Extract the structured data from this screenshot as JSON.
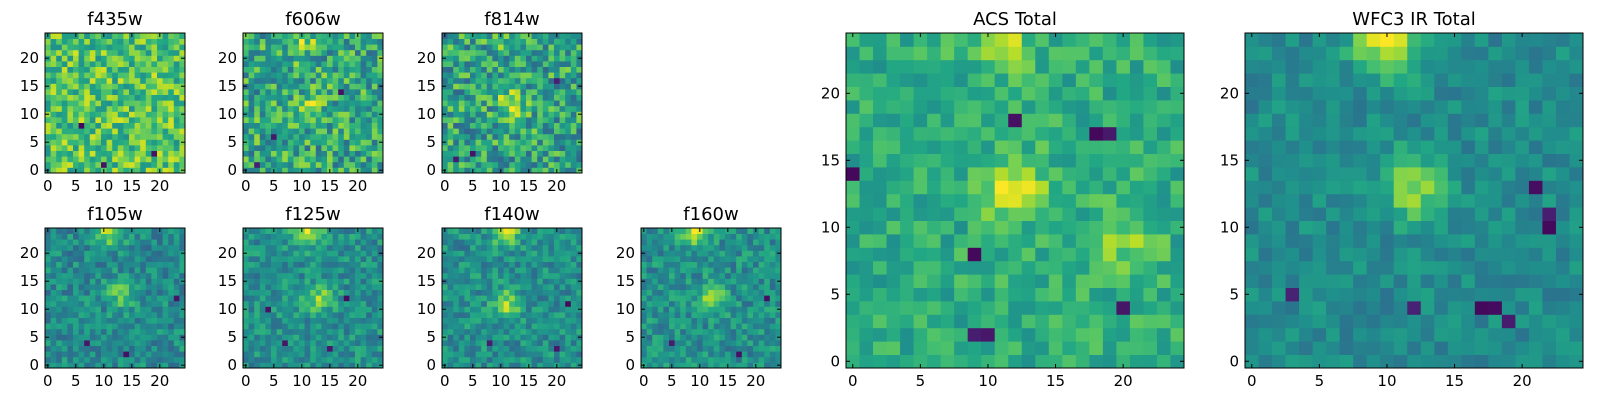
{
  "figure": {
    "description": "Grid of 2D pixel maps, 25x25 pixels each, viridis colormap, origin lower-left",
    "colormap": "viridis"
  },
  "chart_data": [
    {
      "type": "heatmap",
      "title": "f435w",
      "grid": [
        25,
        25
      ],
      "xticks": [
        0,
        5,
        10,
        15,
        20
      ],
      "yticks": [
        0,
        5,
        10,
        15,
        20
      ],
      "bright_spots": [],
      "dark_spots": [
        [
          10,
          1
        ],
        [
          19,
          3
        ],
        [
          6,
          8
        ]
      ],
      "mean_level": 0.72,
      "noise": 0.22
    },
    {
      "type": "heatmap",
      "title": "f606w",
      "grid": [
        25,
        25
      ],
      "xticks": [
        0,
        5,
        10,
        15,
        20
      ],
      "yticks": [
        0,
        5,
        10,
        15,
        20
      ],
      "bright_spots": [
        [
          10,
          23,
          0.25
        ],
        [
          12,
          12,
          0.2
        ]
      ],
      "dark_spots": [
        [
          2,
          1
        ],
        [
          5,
          6
        ],
        [
          17,
          14
        ]
      ],
      "mean_level": 0.6,
      "noise": 0.25
    },
    {
      "type": "heatmap",
      "title": "f814w",
      "grid": [
        25,
        25
      ],
      "xticks": [
        0,
        5,
        10,
        15,
        20
      ],
      "yticks": [
        0,
        5,
        10,
        15,
        20
      ],
      "bright_spots": [
        [
          12,
          12,
          0.35
        ],
        [
          11,
          24,
          0.2
        ]
      ],
      "dark_spots": [
        [
          2,
          2
        ],
        [
          5,
          3
        ],
        [
          20,
          16
        ]
      ],
      "mean_level": 0.58,
      "noise": 0.25
    },
    {
      "type": "heatmap",
      "title": "f105w",
      "grid": [
        25,
        25
      ],
      "xticks": [
        0,
        5,
        10,
        15,
        20
      ],
      "yticks": [
        0,
        5,
        10,
        15,
        20
      ],
      "bright_spots": [
        [
          11,
          24,
          0.45
        ],
        [
          13,
          13,
          0.3
        ]
      ],
      "dark_spots": [
        [
          23,
          12
        ],
        [
          7,
          4
        ],
        [
          14,
          2
        ]
      ],
      "mean_level": 0.48,
      "noise": 0.15
    },
    {
      "type": "heatmap",
      "title": "f125w",
      "grid": [
        25,
        25
      ],
      "xticks": [
        0,
        5,
        10,
        15,
        20
      ],
      "yticks": [
        0,
        5,
        10,
        15,
        20
      ],
      "bright_spots": [
        [
          11,
          24,
          0.45
        ],
        [
          13,
          12,
          0.3
        ]
      ],
      "dark_spots": [
        [
          4,
          10
        ],
        [
          18,
          12
        ],
        [
          7,
          4
        ],
        [
          15,
          3
        ]
      ],
      "mean_level": 0.5,
      "noise": 0.15
    },
    {
      "type": "heatmap",
      "title": "f140w",
      "grid": [
        25,
        25
      ],
      "xticks": [
        0,
        5,
        10,
        15,
        20
      ],
      "yticks": [
        0,
        5,
        10,
        15,
        20
      ],
      "bright_spots": [
        [
          11,
          24,
          0.45
        ],
        [
          11,
          11,
          0.35
        ]
      ],
      "dark_spots": [
        [
          22,
          11
        ],
        [
          20,
          3
        ],
        [
          8,
          4
        ]
      ],
      "mean_level": 0.5,
      "noise": 0.15
    },
    {
      "type": "heatmap",
      "title": "f160w",
      "grid": [
        25,
        25
      ],
      "xticks": [
        0,
        5,
        10,
        15,
        20
      ],
      "yticks": [
        0,
        5,
        10,
        15,
        20
      ],
      "bright_spots": [
        [
          9,
          24,
          0.45
        ],
        [
          12,
          12,
          0.35
        ]
      ],
      "dark_spots": [
        [
          17,
          2
        ],
        [
          5,
          4
        ],
        [
          22,
          12
        ]
      ],
      "mean_level": 0.5,
      "noise": 0.15
    },
    {
      "type": "heatmap",
      "title": "ACS Total",
      "grid": [
        25,
        25
      ],
      "xticks": [
        0,
        5,
        10,
        15,
        20
      ],
      "yticks": [
        0,
        5,
        10,
        15,
        20
      ],
      "bright_spots": [
        [
          11,
          24,
          0.25
        ],
        [
          12,
          13,
          0.3
        ],
        [
          20,
          9,
          0.2
        ]
      ],
      "dark_spots": [
        [
          9,
          2
        ],
        [
          10,
          2
        ],
        [
          9,
          8
        ],
        [
          18,
          17
        ],
        [
          19,
          17
        ],
        [
          12,
          18
        ],
        [
          0,
          14
        ],
        [
          20,
          4
        ]
      ],
      "mean_level": 0.62,
      "noise": 0.13
    },
    {
      "type": "heatmap",
      "title": "WFC3 IR Total",
      "grid": [
        25,
        25
      ],
      "xticks": [
        0,
        5,
        10,
        15,
        20
      ],
      "yticks": [
        0,
        5,
        10,
        15,
        20
      ],
      "bright_spots": [
        [
          10,
          24,
          0.5
        ],
        [
          12,
          13,
          0.35
        ]
      ],
      "dark_spots": [
        [
          17,
          4
        ],
        [
          18,
          4
        ],
        [
          19,
          3
        ],
        [
          12,
          4
        ],
        [
          3,
          5
        ],
        [
          22,
          11
        ],
        [
          22,
          10
        ],
        [
          21,
          13
        ]
      ],
      "mean_level": 0.48,
      "noise": 0.1
    }
  ]
}
